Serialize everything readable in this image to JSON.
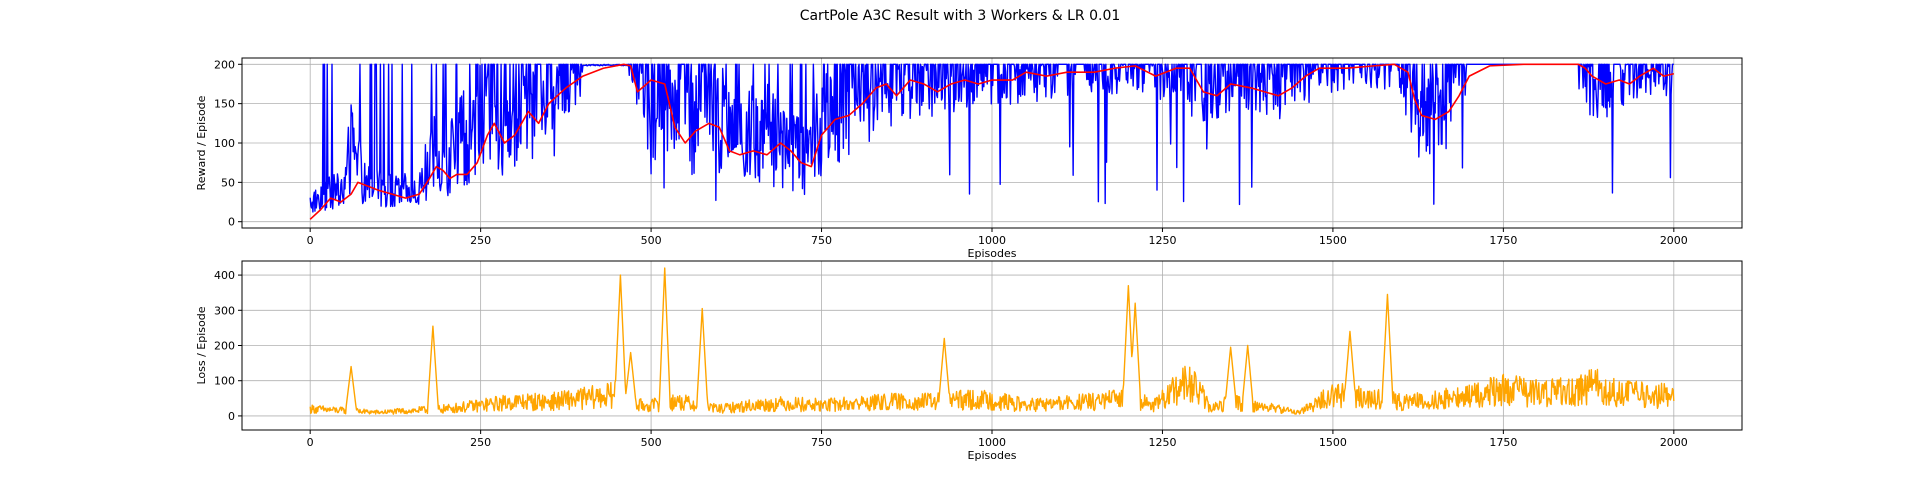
{
  "figure": {
    "title": "CartPole A3C Result with 3 Workers & LR 0.01"
  },
  "chart_data": [
    {
      "type": "line",
      "xlabel": "Episodes",
      "ylabel": "Reward / Episode",
      "xlim": [
        -100,
        2100
      ],
      "ylim": [
        -8,
        208
      ],
      "xticks": [
        "0",
        "250",
        "500",
        "750",
        "1000",
        "1250",
        "1500",
        "1750",
        "2000"
      ],
      "yticks": [
        "0",
        "50",
        "100",
        "150",
        "200"
      ],
      "grid": true,
      "legend": "none",
      "series": [
        {
          "role": "raw",
          "color": "#0000ff",
          "x_range": [
            0,
            2000
          ],
          "keyframes": [
            [
              0,
              20
            ],
            [
              30,
              30
            ],
            [
              50,
              35
            ],
            [
              60,
              80
            ],
            [
              80,
              40
            ],
            [
              100,
              35
            ],
            [
              130,
              30
            ],
            [
              160,
              35
            ],
            [
              180,
              70
            ],
            [
              200,
              65
            ],
            [
              230,
              90
            ],
            [
              260,
              130
            ],
            [
              290,
              110
            ],
            [
              320,
              150
            ],
            [
              360,
              160
            ],
            [
              400,
              195
            ],
            [
              440,
              200
            ],
            [
              480,
              180
            ],
            [
              500,
              120
            ],
            [
              520,
              150
            ],
            [
              560,
              110
            ],
            [
              590,
              130
            ],
            [
              620,
              85
            ],
            [
              660,
              95
            ],
            [
              700,
              80
            ],
            [
              730,
              60
            ],
            [
              750,
              120
            ],
            [
              780,
              140
            ],
            [
              820,
              155
            ],
            [
              860,
              170
            ],
            [
              900,
              175
            ],
            [
              960,
              180
            ],
            [
              1000,
              185
            ],
            [
              1100,
              190
            ],
            [
              1200,
              195
            ],
            [
              1250,
              190
            ],
            [
              1300,
              170
            ],
            [
              1350,
              175
            ],
            [
              1400,
              165
            ],
            [
              1430,
              170
            ],
            [
              1480,
              195
            ],
            [
              1560,
              200
            ],
            [
              1600,
              195
            ],
            [
              1620,
              130
            ],
            [
              1660,
              150
            ],
            [
              1700,
              195
            ],
            [
              1750,
              200
            ],
            [
              1860,
              200
            ],
            [
              1880,
              170
            ],
            [
              1920,
              180
            ],
            [
              1960,
              195
            ],
            [
              2000,
              190
            ]
          ],
          "noise": 0.45
        },
        {
          "role": "smoothed",
          "color": "#ff0000",
          "points": [
            [
              0,
              3
            ],
            [
              15,
              15
            ],
            [
              30,
              30
            ],
            [
              45,
              25
            ],
            [
              60,
              35
            ],
            [
              70,
              50
            ],
            [
              85,
              45
            ],
            [
              100,
              40
            ],
            [
              120,
              35
            ],
            [
              140,
              30
            ],
            [
              160,
              35
            ],
            [
              175,
              55
            ],
            [
              185,
              70
            ],
            [
              195,
              65
            ],
            [
              205,
              55
            ],
            [
              215,
              60
            ],
            [
              230,
              60
            ],
            [
              245,
              75
            ],
            [
              260,
              110
            ],
            [
              270,
              125
            ],
            [
              285,
              100
            ],
            [
              300,
              110
            ],
            [
              310,
              125
            ],
            [
              320,
              140
            ],
            [
              335,
              125
            ],
            [
              350,
              150
            ],
            [
              375,
              170
            ],
            [
              400,
              185
            ],
            [
              430,
              195
            ],
            [
              460,
              200
            ],
            [
              470,
              198
            ],
            [
              480,
              165
            ],
            [
              500,
              180
            ],
            [
              520,
              175
            ],
            [
              535,
              120
            ],
            [
              550,
              100
            ],
            [
              565,
              115
            ],
            [
              585,
              125
            ],
            [
              600,
              120
            ],
            [
              615,
              90
            ],
            [
              630,
              85
            ],
            [
              650,
              90
            ],
            [
              670,
              85
            ],
            [
              690,
              100
            ],
            [
              705,
              90
            ],
            [
              720,
              75
            ],
            [
              735,
              70
            ],
            [
              750,
              110
            ],
            [
              770,
              130
            ],
            [
              790,
              135
            ],
            [
              810,
              150
            ],
            [
              830,
              170
            ],
            [
              845,
              175
            ],
            [
              860,
              160
            ],
            [
              880,
              180
            ],
            [
              900,
              175
            ],
            [
              920,
              165
            ],
            [
              940,
              175
            ],
            [
              960,
              180
            ],
            [
              980,
              175
            ],
            [
              1000,
              180
            ],
            [
              1030,
              180
            ],
            [
              1050,
              190
            ],
            [
              1080,
              185
            ],
            [
              1110,
              190
            ],
            [
              1150,
              190
            ],
            [
              1180,
              195
            ],
            [
              1210,
              198
            ],
            [
              1240,
              185
            ],
            [
              1270,
              195
            ],
            [
              1290,
              195
            ],
            [
              1310,
              165
            ],
            [
              1330,
              160
            ],
            [
              1350,
              175
            ],
            [
              1380,
              170
            ],
            [
              1400,
              165
            ],
            [
              1420,
              160
            ],
            [
              1440,
              170
            ],
            [
              1460,
              185
            ],
            [
              1480,
              195
            ],
            [
              1520,
              195
            ],
            [
              1560,
              198
            ],
            [
              1590,
              200
            ],
            [
              1610,
              190
            ],
            [
              1620,
              155
            ],
            [
              1630,
              135
            ],
            [
              1650,
              130
            ],
            [
              1670,
              140
            ],
            [
              1685,
              160
            ],
            [
              1700,
              185
            ],
            [
              1730,
              198
            ],
            [
              1780,
              200
            ],
            [
              1860,
              200
            ],
            [
              1870,
              195
            ],
            [
              1880,
              185
            ],
            [
              1900,
              175
            ],
            [
              1920,
              180
            ],
            [
              1935,
              175
            ],
            [
              1950,
              185
            ],
            [
              1970,
              195
            ],
            [
              1985,
              185
            ],
            [
              2000,
              188
            ]
          ]
        }
      ]
    },
    {
      "type": "line",
      "xlabel": "Episodes",
      "ylabel": "Loss / Episode",
      "xlim": [
        -100,
        2100
      ],
      "ylim": [
        -40,
        440
      ],
      "xticks": [
        "0",
        "250",
        "500",
        "750",
        "1000",
        "1250",
        "1500",
        "1750",
        "2000"
      ],
      "yticks": [
        "0",
        "100",
        "200",
        "300",
        "400"
      ],
      "grid": true,
      "legend": "none",
      "series": [
        {
          "role": "raw",
          "color": "#ffa500",
          "x_range": [
            0,
            2000
          ],
          "keyframes": [
            [
              0,
              20
            ],
            [
              50,
              15
            ],
            [
              100,
              10
            ],
            [
              150,
              15
            ],
            [
              200,
              20
            ],
            [
              250,
              30
            ],
            [
              300,
              40
            ],
            [
              350,
              40
            ],
            [
              400,
              50
            ],
            [
              450,
              60
            ],
            [
              480,
              30
            ],
            [
              500,
              30
            ],
            [
              540,
              40
            ],
            [
              600,
              20
            ],
            [
              650,
              30
            ],
            [
              700,
              35
            ],
            [
              750,
              30
            ],
            [
              800,
              35
            ],
            [
              850,
              40
            ],
            [
              900,
              40
            ],
            [
              950,
              45
            ],
            [
              1000,
              45
            ],
            [
              1050,
              30
            ],
            [
              1100,
              35
            ],
            [
              1150,
              40
            ],
            [
              1200,
              50
            ],
            [
              1240,
              30
            ],
            [
              1280,
              90
            ],
            [
              1300,
              80
            ],
            [
              1320,
              20
            ],
            [
              1350,
              40
            ],
            [
              1380,
              30
            ],
            [
              1420,
              20
            ],
            [
              1450,
              10
            ],
            [
              1480,
              40
            ],
            [
              1500,
              60
            ],
            [
              1550,
              50
            ],
            [
              1600,
              40
            ],
            [
              1650,
              45
            ],
            [
              1700,
              55
            ],
            [
              1750,
              75
            ],
            [
              1800,
              65
            ],
            [
              1850,
              70
            ],
            [
              1880,
              90
            ],
            [
              1900,
              70
            ],
            [
              1950,
              60
            ],
            [
              2000,
              55
            ]
          ],
          "noise": 0.35,
          "spikes": [
            [
              60,
              140
            ],
            [
              180,
              255
            ],
            [
              455,
              400
            ],
            [
              470,
              180
            ],
            [
              520,
              420
            ],
            [
              575,
              305
            ],
            [
              930,
              220
            ],
            [
              1200,
              370
            ],
            [
              1210,
              320
            ],
            [
              1350,
              195
            ],
            [
              1375,
              200
            ],
            [
              1525,
              240
            ],
            [
              1580,
              345
            ]
          ]
        }
      ]
    }
  ]
}
